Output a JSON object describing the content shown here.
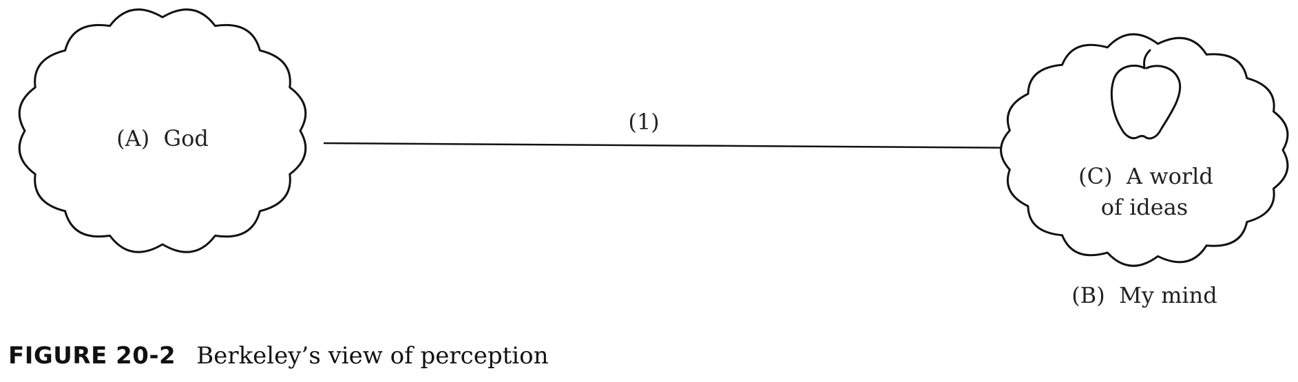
{
  "nodes": {
    "god": {
      "label": "(A)  God"
    },
    "world": {
      "line1": "(C)  A world",
      "line2": "of ideas"
    },
    "mind": {
      "label": "(B)  My mind"
    }
  },
  "arrow": {
    "label": "(1)"
  },
  "icons": {
    "apple": "apple-icon"
  },
  "caption": {
    "label": "FIGURE 20-2",
    "text": "Berkeley’s view of perception"
  }
}
